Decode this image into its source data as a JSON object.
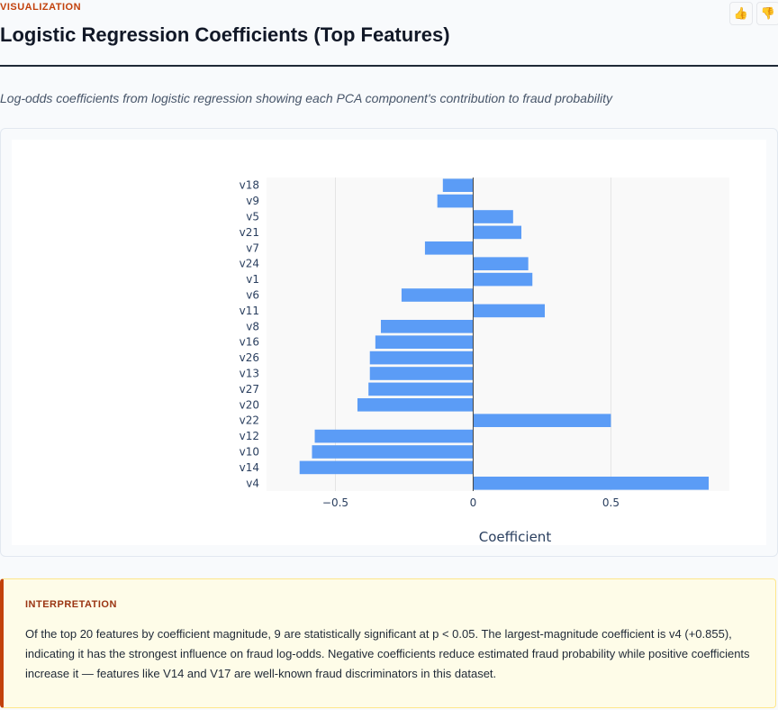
{
  "header": {
    "eyebrow": "VISUALIZATION",
    "title": "Logistic Regression Coefficients (Top Features)",
    "subtitle": "Log-odds coefficients from logistic regression showing each PCA component's contribution to fraud probability",
    "feedback": {
      "up_icon": "thumbs-up-icon",
      "down_icon": "thumbs-down-icon"
    }
  },
  "chart_data": {
    "type": "bar",
    "orientation": "horizontal",
    "categories": [
      "v18",
      "v9",
      "v5",
      "v21",
      "v7",
      "v24",
      "v1",
      "v6",
      "v11",
      "v8",
      "v16",
      "v26",
      "v13",
      "v27",
      "v20",
      "v22",
      "v12",
      "v10",
      "v14",
      "v4"
    ],
    "values": [
      -0.11,
      -0.13,
      0.145,
      0.175,
      -0.175,
      0.2,
      0.215,
      -0.26,
      0.26,
      -0.335,
      -0.355,
      -0.375,
      -0.375,
      -0.38,
      -0.42,
      0.5,
      -0.575,
      -0.585,
      -0.63,
      0.855
    ],
    "xlabel": "Coefficient",
    "ylabel": "",
    "xlim": [
      -0.75,
      0.93
    ],
    "xticks": [
      -0.5,
      0,
      0.5
    ],
    "xtick_labels": [
      "−0.5",
      "0",
      "0.5"
    ],
    "bar_color": "#5b9cf6",
    "grid": true
  },
  "interpretation": {
    "label": "INTERPRETATION",
    "text": "Of the top 20 features by coefficient magnitude, 9 are statistically significant at p < 0.05. The largest-magnitude coefficient is v4 (+0.855), indicating it has the strongest influence on fraud log-odds. Negative coefficients reduce estimated fraud probability while positive coefficients increase it — features like V14 and V17 are well-known fraud discriminators in this dataset."
  }
}
